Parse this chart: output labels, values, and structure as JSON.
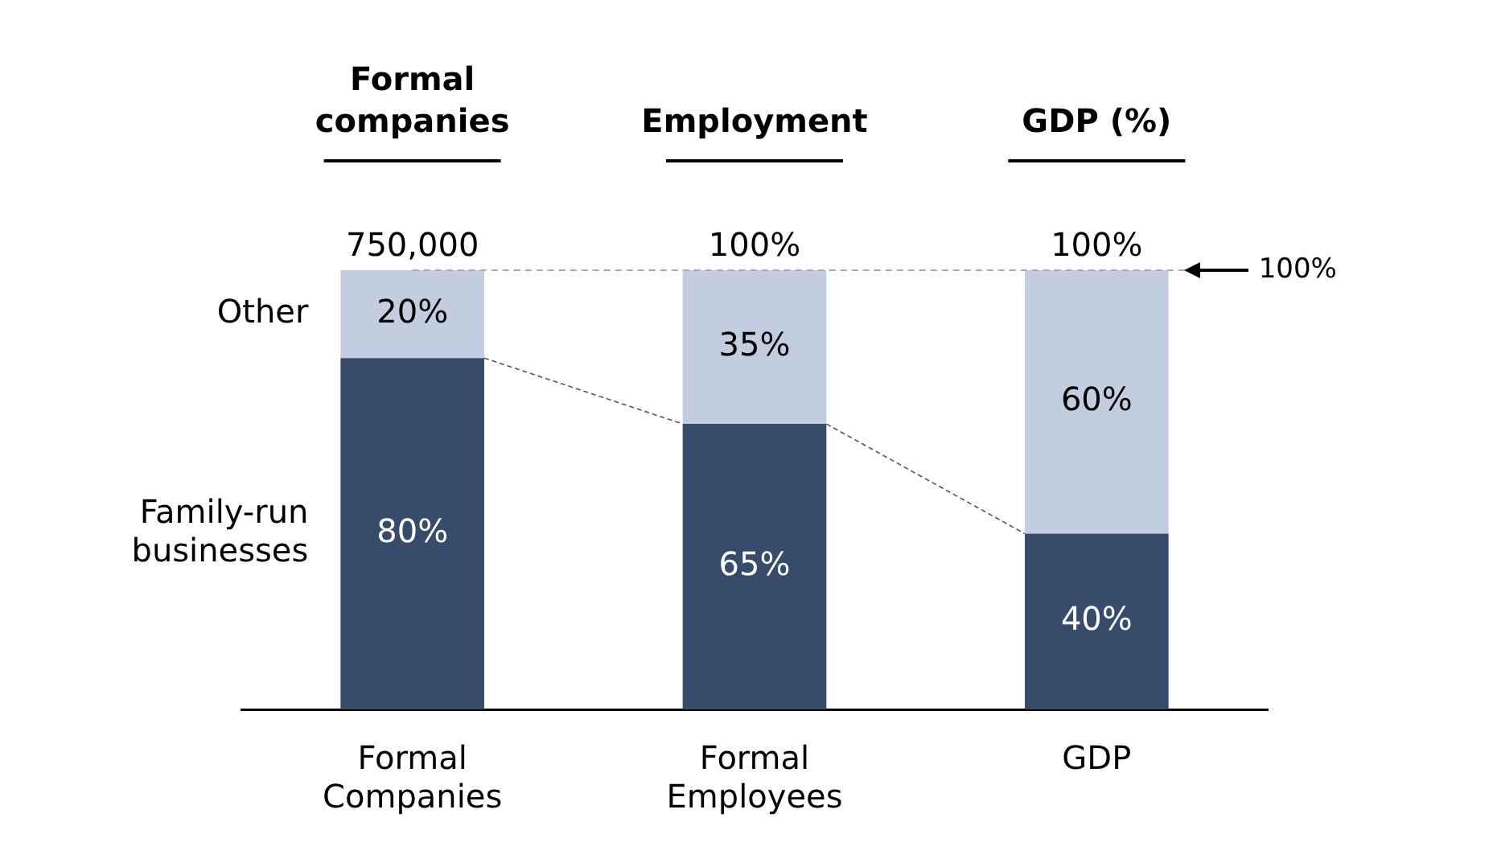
{
  "chart_data": {
    "type": "bar",
    "stacked": true,
    "categories": [
      "Formal Companies",
      "Formal Employees",
      "GDP"
    ],
    "series": [
      {
        "name": "Family-run businesses",
        "color": "#374c6b",
        "values": [
          80,
          65,
          40
        ],
        "value_labels": [
          "80%",
          "65%",
          "40%"
        ]
      },
      {
        "name": "Other",
        "color": "#c3cde0",
        "values": [
          20,
          35,
          60
        ],
        "value_labels": [
          "20%",
          "35%",
          "60%"
        ]
      }
    ],
    "ylim": [
      0,
      100
    ],
    "annotations": [
      "Formal companies",
      "Employment",
      "GDP (%)",
      "750,000",
      "100%",
      "100%"
    ],
    "ref_lines": [
      {
        "axis": "y",
        "value": 100,
        "label": "100%",
        "color": "#aaaaaa",
        "line_style": "dashed"
      }
    ],
    "grid": false,
    "legend": false,
    "tick_labels": "x"
  }
}
